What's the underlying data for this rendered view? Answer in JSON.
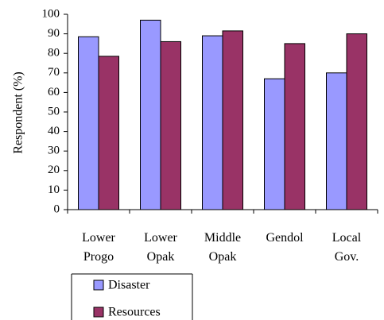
{
  "chart_data": {
    "type": "bar",
    "categories": [
      [
        "Lower",
        "Progo"
      ],
      [
        "Lower",
        "Opak"
      ],
      [
        "Middle",
        "Opak"
      ],
      [
        "Gendol",
        ""
      ],
      [
        "Local",
        "Gov."
      ]
    ],
    "series": [
      {
        "name": "Disaster",
        "values": [
          88.5,
          97,
          89,
          67,
          70
        ],
        "color": "#9999ff"
      },
      {
        "name": "Resources",
        "values": [
          78.5,
          86,
          91.5,
          85,
          90
        ],
        "color": "#993366"
      }
    ],
    "ylabel": "Respondent (%)",
    "ylim": [
      0,
      100
    ],
    "yticks": [
      0,
      10,
      20,
      30,
      40,
      50,
      60,
      70,
      80,
      90,
      100
    ],
    "grid": false,
    "legend_position": "bottom"
  }
}
